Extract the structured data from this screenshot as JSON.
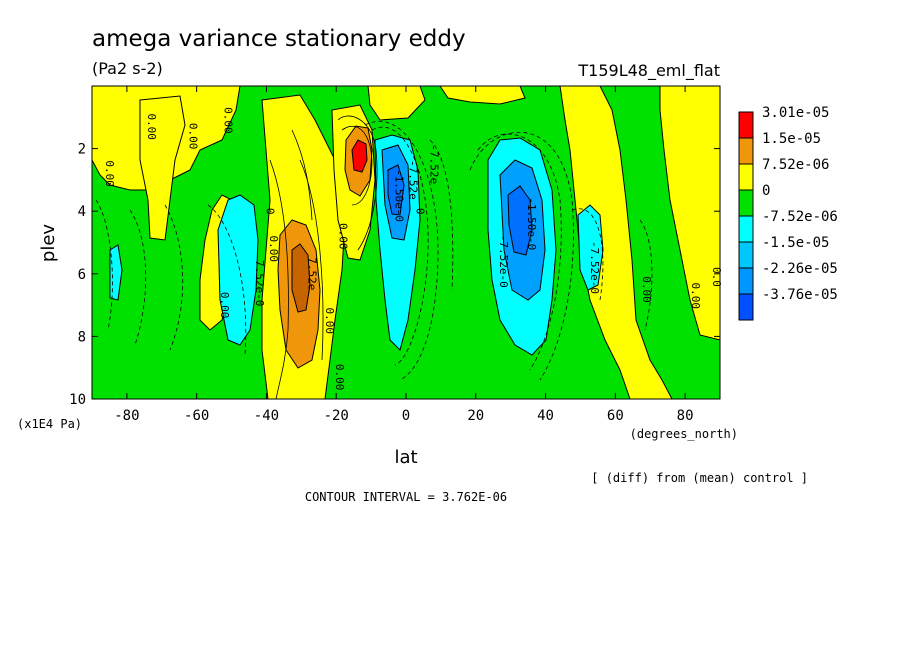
{
  "title": "amega variance stationary eddy",
  "units": "(Pa2 s-2)",
  "dataset": "T159L48_eml_flat",
  "axis_unit_y": "(x1E4 Pa)",
  "axis_unit_x": "(degrees_north)",
  "note": "[ (diff) from (mean) control ]",
  "contour_interval": "CONTOUR INTERVAL = 3.762E-06",
  "chart_data": {
    "type": "heatmap",
    "xlabel": "lat",
    "ylabel": "plev",
    "xlim": [
      -90,
      90
    ],
    "ylim": [
      10,
      0
    ],
    "x_ticks": [
      "-80",
      "-60",
      "-40",
      "-20",
      "0",
      "20",
      "40",
      "60",
      "80"
    ],
    "x_tick_values": [
      -80,
      -60,
      -40,
      -20,
      0,
      20,
      40,
      60,
      80
    ],
    "y_ticks": [
      "2",
      "4",
      "6",
      "8",
      "10"
    ],
    "y_tick_values": [
      2,
      4,
      6,
      8,
      10
    ],
    "legend": {
      "placement": "right",
      "levels": [
        "3.01e-05",
        "1.5e-05",
        "7.52e-06",
        "0",
        "-7.52e-06",
        "-1.5e-05",
        "-2.26e-05",
        "-3.76e-05"
      ],
      "colors": [
        "#ff0000",
        "#f0960a",
        "#ffff00",
        "#00e100",
        "#00ffff",
        "#00c8ff",
        "#0096ff",
        "#0050ff"
      ]
    },
    "contour_labels": [
      {
        "text": "0.00",
        "lat": -52,
        "plev": 1.1
      },
      {
        "text": "0.00",
        "lat": -74,
        "plev": 1.3
      },
      {
        "text": "0.00",
        "lat": -62,
        "plev": 1.6
      },
      {
        "text": "0.00",
        "lat": -86,
        "plev": 2.8
      },
      {
        "text": "0.00",
        "lat": -39,
        "plev": 5.2
      },
      {
        "text": "7.52e-0",
        "lat": -43,
        "plev": 6.3
      },
      {
        "text": "0.00",
        "lat": -53,
        "plev": 7.0
      },
      {
        "text": "7.52e",
        "lat": -28,
        "plev": 6.0
      },
      {
        "text": "0.00",
        "lat": -23,
        "plev": 7.5
      },
      {
        "text": "0.00",
        "lat": -19,
        "plev": 4.8
      },
      {
        "text": "0.00",
        "lat": -20,
        "plev": 9.3
      },
      {
        "text": "-1.50e-0",
        "lat": -3,
        "plev": 3.5
      },
      {
        "text": "-7.52e",
        "lat": 1,
        "plev": 3.0
      },
      {
        "text": "-7.52e",
        "lat": 7,
        "plev": 2.5
      },
      {
        "text": "0",
        "lat": 3,
        "plev": 4.0
      },
      {
        "text": "-7.52e-0",
        "lat": 27,
        "plev": 5.6
      },
      {
        "text": "-1.50e-0",
        "lat": 35,
        "plev": 4.4
      },
      {
        "text": "-7.52e-0",
        "lat": 53,
        "plev": 5.8
      },
      {
        "text": "0.00",
        "lat": 68,
        "plev": 6.5
      },
      {
        "text": "0.00",
        "lat": 82,
        "plev": 6.7
      },
      {
        "text": "0.0",
        "lat": 88,
        "plev": 6.1
      },
      {
        "text": "0",
        "lat": -40,
        "plev": 4.0
      }
    ]
  }
}
